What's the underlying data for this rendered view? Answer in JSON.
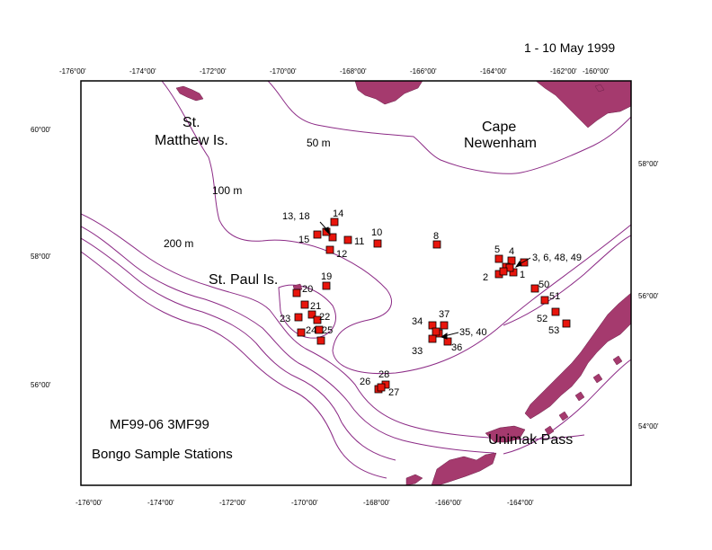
{
  "header": {
    "date_range": "1 - 10 May 1999"
  },
  "titles": {
    "line1": "MF99-06   3MF99",
    "line2": "Bongo Sample Stations"
  },
  "axes": {
    "top_lon": [
      "-176°00'",
      "-174°00'",
      "-172°00'",
      "-170°00'",
      "-168°00'",
      "-166°00'",
      "-164°00'",
      "-162°00'",
      "-160°00'"
    ],
    "bottom_lon": [
      "-176°00'",
      "-174°00'",
      "-172°00'",
      "-170°00'",
      "-168°00'",
      "-166°00'",
      "-164°00'"
    ],
    "left_lat": [
      "60°00'",
      "58°00'",
      "56°00'"
    ],
    "right_lat": [
      "58°00'",
      "56°00'",
      "54°00'"
    ]
  },
  "places": {
    "st_matthew_1": "St.",
    "st_matthew_2": "Matthew Is.",
    "cape_1": "Cape",
    "cape_2": "Newenham",
    "st_paul": "St. Paul Is.",
    "unimak": "Unimak Pass"
  },
  "depths": {
    "d50": "50 m",
    "d100": "100 m",
    "d200": "200 m"
  },
  "station_labels": [
    "13, 18",
    "14",
    "15",
    "11",
    "12",
    "10",
    "8",
    "5",
    "4",
    "3, 6, 48, 49",
    "2",
    "1",
    "50",
    "51",
    "52",
    "53",
    "19",
    "20",
    "21",
    "22",
    "23",
    "24",
    "25",
    "34",
    "37",
    "35, 40",
    "33",
    "36",
    "26",
    "28",
    "27"
  ],
  "colors": {
    "land": "#a53a6e",
    "contour": "#8c2b86",
    "station": "#e8150c"
  },
  "station_count": 38
}
